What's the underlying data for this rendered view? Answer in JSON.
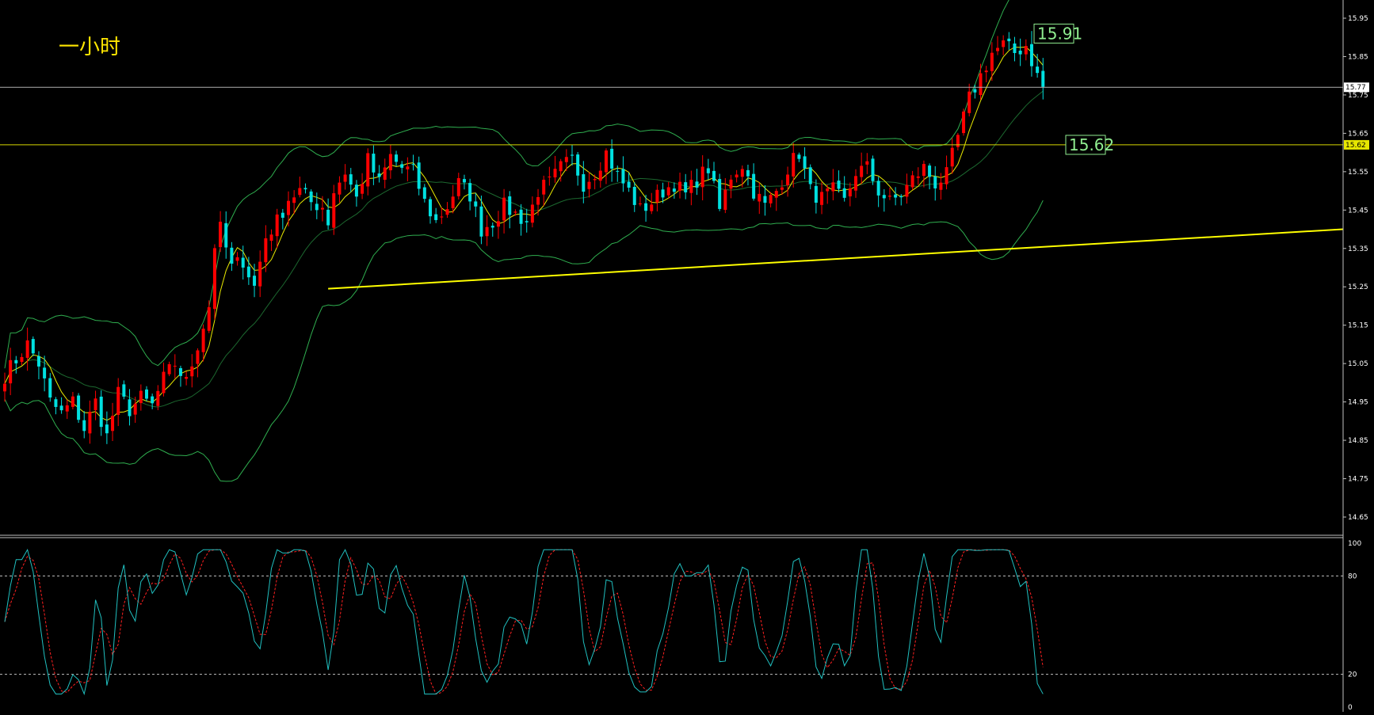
{
  "chart_data": [
    {
      "type": "candlestick",
      "title": "一小时",
      "y_ticks": [
        "15.95",
        "15.85",
        "15.75",
        "15.65",
        "15.55",
        "15.45",
        "15.35",
        "15.25",
        "15.15",
        "15.05",
        "14.95",
        "14.85",
        "14.75",
        "14.65"
      ],
      "ylim": [
        14.62,
        15.98
      ],
      "current_price": "15.77",
      "horizontal_levels": [
        {
          "label": "15.62",
          "value": 15.62,
          "color": "#d6d600"
        },
        {
          "label": "15.91",
          "value": 15.91,
          "color": "#ffffff"
        }
      ],
      "trendline": {
        "start": {
          "bar": 57,
          "price": 15.245
        },
        "end": {
          "bar": 999,
          "price": 15.4
        },
        "color": "#ffff00"
      },
      "overlays": [
        "Bollinger Bands",
        "moving average"
      ],
      "colors": {
        "up": "#ff0000",
        "down": "#00e0e0",
        "bands": "#2fae4f",
        "ma": "#e8e800",
        "level_label": "#90ee90"
      },
      "anchors": [
        [
          0,
          15.02
        ],
        [
          2,
          15.06
        ],
        [
          4,
          15.1
        ],
        [
          6,
          15.05
        ],
        [
          8,
          14.95
        ],
        [
          10,
          14.92
        ],
        [
          12,
          14.95
        ],
        [
          14,
          14.88
        ],
        [
          16,
          14.95
        ],
        [
          18,
          14.86
        ],
        [
          20,
          14.97
        ],
        [
          22,
          14.93
        ],
        [
          24,
          14.96
        ],
        [
          26,
          14.94
        ],
        [
          28,
          15.01
        ],
        [
          30,
          15.05
        ],
        [
          32,
          15.0
        ],
        [
          34,
          15.1
        ],
        [
          36,
          15.2
        ],
        [
          37,
          15.36
        ],
        [
          38,
          15.4
        ],
        [
          40,
          15.3
        ],
        [
          42,
          15.32
        ],
        [
          44,
          15.25
        ],
        [
          46,
          15.38
        ],
        [
          48,
          15.42
        ],
        [
          50,
          15.48
        ],
        [
          52,
          15.5
        ],
        [
          54,
          15.47
        ],
        [
          56,
          15.46
        ],
        [
          57,
          15.42
        ],
        [
          58,
          15.5
        ],
        [
          60,
          15.55
        ],
        [
          62,
          15.48
        ],
        [
          64,
          15.58
        ],
        [
          66,
          15.52
        ],
        [
          68,
          15.59
        ],
        [
          70,
          15.56
        ],
        [
          72,
          15.55
        ],
        [
          74,
          15.47
        ],
        [
          76,
          15.42
        ],
        [
          78,
          15.46
        ],
        [
          80,
          15.52
        ],
        [
          82,
          15.49
        ],
        [
          84,
          15.4
        ],
        [
          86,
          15.42
        ],
        [
          88,
          15.46
        ],
        [
          90,
          15.44
        ],
        [
          92,
          15.42
        ],
        [
          94,
          15.5
        ],
        [
          96,
          15.52
        ],
        [
          98,
          15.56
        ],
        [
          100,
          15.58
        ],
        [
          102,
          15.52
        ],
        [
          104,
          15.55
        ],
        [
          106,
          15.6
        ],
        [
          108,
          15.54
        ],
        [
          110,
          15.5
        ],
        [
          112,
          15.45
        ],
        [
          114,
          15.47
        ],
        [
          116,
          15.5
        ],
        [
          118,
          15.52
        ],
        [
          120,
          15.49
        ],
        [
          122,
          15.53
        ],
        [
          124,
          15.56
        ],
        [
          126,
          15.45
        ],
        [
          128,
          15.54
        ],
        [
          130,
          15.57
        ],
        [
          132,
          15.5
        ],
        [
          134,
          15.46
        ],
        [
          136,
          15.5
        ],
        [
          138,
          15.56
        ],
        [
          140,
          15.6
        ],
        [
          142,
          15.5
        ],
        [
          144,
          15.48
        ],
        [
          146,
          15.5
        ],
        [
          148,
          15.47
        ],
        [
          150,
          15.55
        ],
        [
          152,
          15.56
        ],
        [
          154,
          15.5
        ],
        [
          156,
          15.47
        ],
        [
          158,
          15.49
        ],
        [
          160,
          15.53
        ],
        [
          162,
          15.56
        ],
        [
          164,
          15.52
        ],
        [
          166,
          15.54
        ],
        [
          168,
          15.64
        ],
        [
          170,
          15.74
        ],
        [
          172,
          15.8
        ],
        [
          174,
          15.86
        ],
        [
          176,
          15.88
        ],
        [
          178,
          15.86
        ],
        [
          180,
          15.88
        ],
        [
          182,
          15.8
        ],
        [
          183,
          15.77
        ]
      ],
      "n_bars": 184
    },
    {
      "type": "line",
      "title": "stochastic oscillator",
      "y_ticks": [
        "100",
        "80",
        "20",
        "0"
      ],
      "ylim": [
        0,
        100
      ],
      "levels": [
        80,
        20
      ],
      "series": [
        {
          "color": "#20c0c0",
          "style": "solid"
        },
        {
          "color": "#ff2020",
          "style": "dashed"
        }
      ]
    }
  ]
}
